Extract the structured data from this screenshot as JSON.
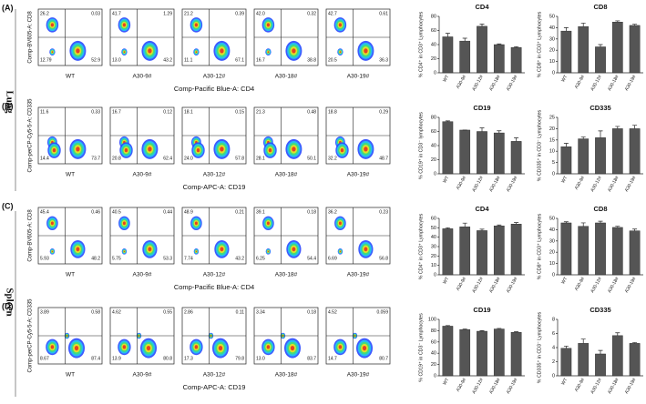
{
  "tissues": [
    "Lung",
    "Spleen"
  ],
  "flow_panels": [
    {
      "label": "(A)",
      "x_axis": "Comp-Pacific Blue-A: CD4",
      "y_axis": "Comp-BV605-A: CD8",
      "samples": [
        {
          "name": "WT",
          "quadrants": [
            "26.2",
            "0.03",
            "12.79",
            "52.9"
          ]
        },
        {
          "name": "A30-9#",
          "quadrants": [
            "41.7",
            "1.29",
            "13.0",
            "43.2"
          ]
        },
        {
          "name": "A30-12#",
          "quadrants": [
            "21.2",
            "0.39",
            "11.1",
            "67.1"
          ]
        },
        {
          "name": "A30-18#",
          "quadrants": [
            "42.0",
            "0.32",
            "16.7",
            "38.8"
          ]
        },
        {
          "name": "A30-19#",
          "quadrants": [
            "42.7",
            "0.61",
            "20.5",
            "36.3"
          ]
        }
      ]
    },
    {
      "label": "(B)",
      "x_axis": "Comp-APC-A: CD19",
      "y_axis": "Comp-perCP-Cy5-5-A: CD335",
      "samples": [
        {
          "name": "WT",
          "quadrants": [
            "11.6",
            "0.33",
            "14.4",
            "73.7"
          ]
        },
        {
          "name": "A30-9#",
          "quadrants": [
            "16.7",
            "0.12",
            "20.8",
            "62.4"
          ]
        },
        {
          "name": "A30-12#",
          "quadrants": [
            "18.1",
            "0.15",
            "24.0",
            "57.8"
          ]
        },
        {
          "name": "A30-18#",
          "quadrants": [
            "21.3",
            "0.48",
            "28.1",
            "50.1"
          ]
        },
        {
          "name": "A30-19#",
          "quadrants": [
            "18.8",
            "0.29",
            "32.2",
            "48.7"
          ]
        }
      ]
    },
    {
      "label": "(C)",
      "x_axis": "Comp-Pacific Blue-A: CD4",
      "y_axis": "Comp-BV605-A: CD8",
      "samples": [
        {
          "name": "WT",
          "quadrants": [
            "45.4",
            "0.46",
            "5.93",
            "48.2"
          ]
        },
        {
          "name": "A30-9#",
          "quadrants": [
            "40.5",
            "0.44",
            "5.75",
            "53.3"
          ]
        },
        {
          "name": "A30-12#",
          "quadrants": [
            "48.9",
            "0.21",
            "7.74",
            "43.2"
          ]
        },
        {
          "name": "A30-18#",
          "quadrants": [
            "39.1",
            "0.18",
            "6.25",
            "54.4"
          ]
        },
        {
          "name": "A30-19#",
          "quadrants": [
            "36.2",
            "0.23",
            "6.69",
            "56.8"
          ]
        }
      ]
    },
    {
      "label": "(D)",
      "x_axis": "Comp-APC-A: CD19",
      "y_axis": "Comp-perCP-Cy5-5-A: CD335",
      "samples": [
        {
          "name": "WT",
          "quadrants": [
            "3.89",
            "0.58",
            "8.67",
            "87.4"
          ]
        },
        {
          "name": "A30-9#",
          "quadrants": [
            "4.62",
            "0.55",
            "13.9",
            "80.8"
          ]
        },
        {
          "name": "A30-12#",
          "quadrants": [
            "2.86",
            "0.11",
            "17.3",
            "79.8"
          ]
        },
        {
          "name": "A30-18#",
          "quadrants": [
            "3.34",
            "0.18",
            "13.0",
            "83.7"
          ]
        },
        {
          "name": "A30-19#",
          "quadrants": [
            "4.52",
            "0.059",
            "14.7",
            "80.7"
          ]
        }
      ]
    }
  ],
  "chart_data": [
    {
      "type": "bar",
      "title": "CD4",
      "y_label": "% CD4⁺ in CD3⁺ Lymphocytes",
      "color": "#555555",
      "categories": [
        "WT",
        "A30-9#",
        "A30-12#",
        "A30-18#",
        "A30-19#"
      ],
      "values": [
        51,
        45,
        66,
        40,
        36
      ],
      "errors": [
        5,
        4,
        3,
        1,
        1
      ],
      "ylim": [
        0,
        80
      ],
      "yticks": [
        0,
        20,
        40,
        60,
        80
      ]
    },
    {
      "type": "bar",
      "title": "CD8",
      "y_label": "% CD8⁺ in CD3⁺ Lymphocytes",
      "color": "#555555",
      "categories": [
        "WT",
        "A30-9#",
        "A30-12#",
        "A30-18#",
        "A30-19#"
      ],
      "values": [
        37,
        41,
        23,
        45,
        42
      ],
      "errors": [
        3,
        3,
        2,
        1,
        1
      ],
      "ylim": [
        0,
        50
      ],
      "yticks": [
        0,
        10,
        20,
        30,
        40,
        50
      ]
    },
    {
      "type": "bar",
      "title": "CD19",
      "y_label": "% CD19⁺ in CD3⁻ lymphocytes",
      "color": "#555555",
      "categories": [
        "WT",
        "A30-9#",
        "A30-12#",
        "A30-18#",
        "A30-19#"
      ],
      "values": [
        74,
        62,
        60,
        58,
        46
      ],
      "errors": [
        1,
        0,
        5,
        3,
        5
      ],
      "ylim": [
        0,
        80
      ],
      "yticks": [
        0,
        20,
        40,
        60,
        80
      ]
    },
    {
      "type": "bar",
      "title": "CD335",
      "y_label": "% CD335⁺ in CD3⁻ Lymphocytes",
      "color": "#555555",
      "categories": [
        "WT",
        "A30-9#",
        "A30-12#",
        "A30-18#",
        "A30-19#"
      ],
      "values": [
        12,
        15.5,
        16,
        20,
        20
      ],
      "errors": [
        1.5,
        0.8,
        3,
        1,
        1.5
      ],
      "ylim": [
        0,
        25
      ],
      "yticks": [
        0,
        5,
        10,
        15,
        20,
        25
      ]
    },
    {
      "type": "bar",
      "title": "CD4",
      "y_label": "% CD4⁺ in CD3⁺ Lymphocytes",
      "color": "#555555",
      "categories": [
        "WT",
        "A30-9#",
        "A30-12#",
        "A30-18#",
        "A30-19#"
      ],
      "values": [
        49,
        51,
        47,
        52,
        54
      ],
      "errors": [
        1,
        4,
        1.5,
        1,
        1.5
      ],
      "ylim": [
        0,
        60
      ],
      "yticks": [
        0,
        10,
        20,
        30,
        40,
        50,
        60
      ]
    },
    {
      "type": "bar",
      "title": "CD8",
      "y_label": "% CD8⁺ in CD3⁺ Lymphocytes",
      "color": "#555555",
      "categories": [
        "WT",
        "A30-9#",
        "A30-12#",
        "A30-18#",
        "A30-19#"
      ],
      "values": [
        46,
        43,
        46,
        42,
        39
      ],
      "errors": [
        1,
        3,
        1.5,
        1,
        1.5
      ],
      "ylim": [
        0,
        50
      ],
      "yticks": [
        0,
        10,
        20,
        30,
        40,
        50
      ]
    },
    {
      "type": "bar",
      "title": "CD19",
      "y_label": "% CD19⁺ in CD3⁻ Lymphocytes",
      "color": "#555555",
      "categories": [
        "WT",
        "A30-9#",
        "A30-12#",
        "A30-18#",
        "A30-19#"
      ],
      "values": [
        88,
        82,
        79,
        83,
        77
      ],
      "errors": [
        1,
        1,
        1,
        1,
        1
      ],
      "ylim": [
        0,
        100
      ],
      "yticks": [
        0,
        20,
        40,
        60,
        80,
        100
      ]
    },
    {
      "type": "bar",
      "title": "CD335",
      "y_label": "% CD335⁺ in CD3⁻ Lymphocytes",
      "color": "#555555",
      "categories": [
        "WT",
        "A30-9#",
        "A30-12#",
        "A30-18#",
        "A30-19#"
      ],
      "values": [
        3.9,
        4.6,
        3.1,
        5.7,
        4.6
      ],
      "errors": [
        0.3,
        0.6,
        0.5,
        0.4,
        0.1
      ],
      "ylim": [
        0,
        8
      ],
      "yticks": [
        0,
        2,
        4,
        6,
        8
      ]
    }
  ]
}
